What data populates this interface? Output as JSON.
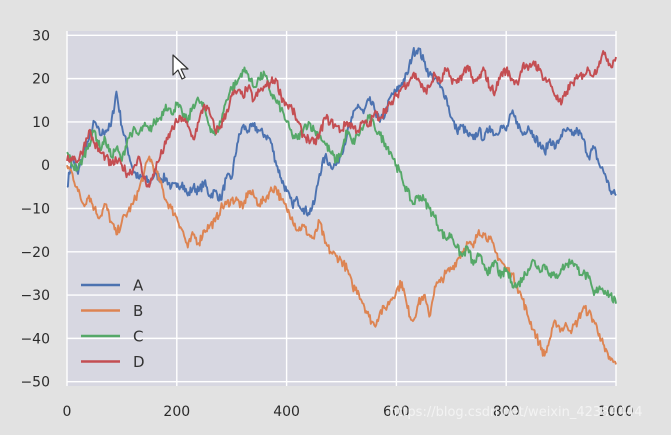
{
  "chart_data": {
    "type": "line",
    "title": "",
    "xlabel": "",
    "ylabel": "",
    "xlim": [
      0,
      1000
    ],
    "ylim": [
      -51,
      31
    ],
    "x_ticks": [
      0,
      200,
      400,
      600,
      800,
      1000
    ],
    "x_tick_labels": [
      "0",
      "200",
      "400",
      "600",
      "800",
      "1000"
    ],
    "y_ticks": [
      30,
      20,
      10,
      0,
      -10,
      -20,
      -30,
      -40,
      -50
    ],
    "y_tick_labels": [
      "30",
      "20",
      "10",
      "0",
      "−10",
      "−20",
      "−30",
      "−40",
      "−50"
    ],
    "grid": true,
    "legend_position": "bottom-left",
    "background": "#d7d7e1",
    "series": [
      {
        "name": "A",
        "color": "#4c72b0",
        "x": [
          0,
          10,
          20,
          30,
          40,
          50,
          60,
          70,
          80,
          90,
          100,
          110,
          120,
          130,
          140,
          150,
          160,
          170,
          180,
          190,
          200,
          210,
          220,
          230,
          240,
          250,
          260,
          270,
          280,
          290,
          300,
          310,
          320,
          330,
          340,
          350,
          360,
          370,
          380,
          390,
          400,
          410,
          420,
          430,
          440,
          450,
          460,
          470,
          480,
          490,
          500,
          510,
          520,
          530,
          540,
          550,
          560,
          570,
          580,
          590,
          600,
          610,
          620,
          630,
          640,
          650,
          660,
          670,
          680,
          690,
          700,
          710,
          720,
          730,
          740,
          750,
          760,
          770,
          780,
          790,
          800,
          810,
          820,
          830,
          840,
          850,
          860,
          870,
          880,
          890,
          900,
          910,
          920,
          930,
          940,
          950,
          960,
          970,
          980,
          990,
          1000
        ],
        "y": [
          -5,
          2,
          -2,
          3,
          6,
          10,
          7,
          8,
          9,
          17,
          9,
          4,
          -1,
          -3,
          -3,
          -4,
          -2,
          -3,
          -3,
          -5,
          -5,
          -4,
          -7,
          -5,
          -6,
          -4,
          -7,
          -6,
          -8,
          -3,
          -3,
          5,
          9,
          8,
          9,
          8,
          7,
          6,
          1,
          -3,
          -6,
          -9,
          -8,
          -10,
          -11,
          -9,
          -2,
          2,
          0,
          0,
          3,
          7,
          11,
          14,
          12,
          15,
          13,
          10,
          12,
          16,
          17,
          19,
          21,
          26,
          27,
          24,
          21,
          20,
          18,
          16,
          11,
          8,
          9,
          7,
          6,
          8,
          6,
          9,
          7,
          9,
          8,
          12,
          10,
          7,
          9,
          7,
          5,
          3,
          6,
          4,
          7,
          8,
          7,
          8,
          6,
          2,
          4,
          0,
          -2,
          -6,
          -7
        ]
      },
      {
        "name": "B",
        "color": "#dd8452",
        "x": [
          0,
          10,
          20,
          30,
          40,
          50,
          60,
          70,
          80,
          90,
          100,
          110,
          120,
          130,
          140,
          150,
          160,
          170,
          180,
          190,
          200,
          210,
          220,
          230,
          240,
          250,
          260,
          270,
          280,
          290,
          300,
          310,
          320,
          330,
          340,
          350,
          360,
          370,
          380,
          390,
          400,
          410,
          420,
          430,
          440,
          450,
          460,
          470,
          480,
          490,
          500,
          510,
          520,
          530,
          540,
          550,
          560,
          570,
          580,
          590,
          600,
          610,
          620,
          630,
          640,
          650,
          660,
          670,
          680,
          690,
          700,
          710,
          720,
          730,
          740,
          750,
          760,
          770,
          780,
          790,
          800,
          810,
          820,
          830,
          840,
          850,
          860,
          870,
          880,
          890,
          900,
          910,
          920,
          930,
          940,
          950,
          960,
          970,
          980,
          990,
          1000
        ],
        "y": [
          0,
          -2,
          -6,
          -9,
          -7,
          -10,
          -12,
          -9,
          -13,
          -16,
          -13,
          -11,
          -9,
          -6,
          -2,
          2,
          -1,
          -4,
          -8,
          -10,
          -12,
          -15,
          -19,
          -16,
          -18,
          -15,
          -14,
          -13,
          -10,
          -9,
          -8,
          -8,
          -10,
          -6,
          -7,
          -9,
          -8,
          -6,
          -5,
          -8,
          -10,
          -12,
          -15,
          -14,
          -16,
          -17,
          -13,
          -18,
          -20,
          -21,
          -22,
          -24,
          -28,
          -29,
          -32,
          -35,
          -37,
          -34,
          -33,
          -31,
          -29,
          -27,
          -33,
          -36,
          -32,
          -30,
          -35,
          -28,
          -27,
          -25,
          -24,
          -22,
          -20,
          -18,
          -19,
          -15,
          -16,
          -17,
          -20,
          -22,
          -24,
          -25,
          -28,
          -31,
          -35,
          -38,
          -41,
          -44,
          -40,
          -36,
          -38,
          -37,
          -38,
          -36,
          -33,
          -34,
          -36,
          -39,
          -43,
          -45,
          -46
        ]
      },
      {
        "name": "C",
        "color": "#55a868",
        "x": [
          0,
          10,
          20,
          30,
          40,
          50,
          60,
          70,
          80,
          90,
          100,
          110,
          120,
          130,
          140,
          150,
          160,
          170,
          180,
          190,
          200,
          210,
          220,
          230,
          240,
          250,
          260,
          270,
          280,
          290,
          300,
          310,
          320,
          330,
          340,
          350,
          360,
          370,
          380,
          390,
          400,
          410,
          420,
          430,
          440,
          450,
          460,
          470,
          480,
          490,
          500,
          510,
          520,
          530,
          540,
          550,
          560,
          570,
          580,
          590,
          600,
          610,
          620,
          630,
          640,
          650,
          660,
          670,
          680,
          690,
          700,
          710,
          720,
          730,
          740,
          750,
          760,
          770,
          780,
          790,
          800,
          810,
          820,
          830,
          840,
          850,
          860,
          870,
          880,
          890,
          900,
          910,
          920,
          930,
          940,
          950,
          960,
          970,
          980,
          990,
          1000
        ],
        "y": [
          3,
          0,
          -1,
          2,
          5,
          8,
          4,
          6,
          2,
          4,
          1,
          6,
          8,
          7,
          9,
          8,
          10,
          11,
          14,
          12,
          14,
          12,
          10,
          14,
          15,
          13,
          9,
          7,
          10,
          15,
          18,
          19,
          22,
          21,
          18,
          20,
          21,
          17,
          15,
          13,
          10,
          7,
          6,
          8,
          10,
          8,
          7,
          5,
          3,
          1,
          3,
          8,
          5,
          7,
          9,
          11,
          9,
          7,
          5,
          3,
          0,
          -3,
          -6,
          -9,
          -7,
          -8,
          -10,
          -12,
          -15,
          -17,
          -16,
          -19,
          -21,
          -19,
          -23,
          -21,
          -23,
          -25,
          -22,
          -26,
          -24,
          -27,
          -28,
          -26,
          -24,
          -22,
          -24,
          -23,
          -25,
          -26,
          -24,
          -23,
          -22,
          -24,
          -25,
          -26,
          -30,
          -28,
          -29,
          -30,
          -32
        ]
      },
      {
        "name": "D",
        "color": "#c44e52",
        "x": [
          0,
          10,
          20,
          30,
          40,
          50,
          60,
          70,
          80,
          90,
          100,
          110,
          120,
          130,
          140,
          150,
          160,
          170,
          180,
          190,
          200,
          210,
          220,
          230,
          240,
          250,
          260,
          270,
          280,
          290,
          300,
          310,
          320,
          330,
          340,
          350,
          360,
          370,
          380,
          390,
          400,
          410,
          420,
          430,
          440,
          450,
          460,
          470,
          480,
          490,
          500,
          510,
          520,
          530,
          540,
          550,
          560,
          570,
          580,
          590,
          600,
          610,
          620,
          630,
          640,
          650,
          660,
          670,
          680,
          690,
          700,
          710,
          720,
          730,
          740,
          750,
          760,
          770,
          780,
          790,
          800,
          810,
          820,
          830,
          840,
          850,
          860,
          870,
          880,
          890,
          900,
          910,
          920,
          930,
          940,
          950,
          960,
          970,
          980,
          990,
          1000
        ],
        "y": [
          1,
          2,
          1,
          4,
          8,
          5,
          3,
          2,
          0,
          1,
          0,
          -2,
          -1,
          2,
          -3,
          -5,
          -1,
          2,
          5,
          8,
          10,
          11,
          9,
          6,
          10,
          14,
          12,
          8,
          9,
          12,
          16,
          17,
          16,
          18,
          15,
          17,
          18,
          19,
          20,
          16,
          14,
          13,
          10,
          7,
          6,
          5,
          7,
          11,
          10,
          9,
          8,
          10,
          9,
          8,
          10,
          9,
          12,
          11,
          13,
          14,
          16,
          18,
          19,
          21,
          20,
          17,
          18,
          21,
          19,
          22,
          20,
          19,
          21,
          23,
          19,
          20,
          22,
          18,
          17,
          21,
          22,
          20,
          19,
          23,
          22,
          24,
          22,
          20,
          19,
          16,
          14,
          17,
          19,
          20,
          21,
          22,
          21,
          24,
          26,
          23,
          25
        ]
      }
    ]
  },
  "watermark": "https://blog.csdn.net/weixin_42384444"
}
